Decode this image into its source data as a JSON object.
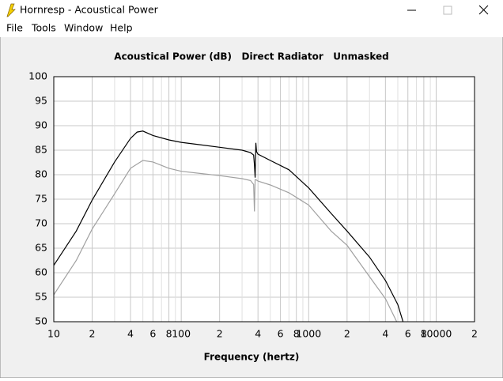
{
  "window": {
    "title": "Hornresp - Acoustical Power",
    "menu": [
      "File",
      "Tools",
      "Window",
      "Help"
    ]
  },
  "chart_data": {
    "type": "line",
    "title": "Acoustical Power (dB)   Direct Radiator   Unmasked",
    "x_label": "Frequency (hertz)",
    "x_scale": "log",
    "grid": true,
    "xlim": [
      10,
      20000
    ],
    "ylim": [
      50,
      100
    ],
    "xticks": [
      10,
      {
        "value": 20,
        "label": "2"
      },
      {
        "value": 40,
        "label": "4"
      },
      {
        "value": 60,
        "label": "6"
      },
      {
        "value": 80,
        "label": "8"
      },
      100,
      {
        "value": 200,
        "label": "2"
      },
      {
        "value": 400,
        "label": "4"
      },
      {
        "value": 600,
        "label": "6"
      },
      {
        "value": 800,
        "label": "8"
      },
      1000,
      {
        "value": 2000,
        "label": "2"
      },
      {
        "value": 4000,
        "label": "4"
      },
      {
        "value": 6000,
        "label": "6"
      },
      {
        "value": 8000,
        "label": "8"
      },
      10000,
      {
        "value": 20000,
        "label": "2"
      }
    ],
    "x_minor_ticks": [
      30,
      50,
      70,
      90,
      300,
      500,
      700,
      900,
      3000,
      5000,
      7000,
      9000
    ],
    "yticks": [
      50,
      55,
      60,
      65,
      70,
      75,
      80,
      85,
      90,
      95,
      100
    ],
    "series": [
      {
        "color": "#000000",
        "x": [
          10,
          15,
          20,
          30,
          40,
          45,
          50,
          60,
          80,
          100,
          200,
          300,
          350,
          370,
          375,
          380,
          385,
          390,
          400,
          500,
          700,
          1000,
          1500,
          2000,
          3000,
          4000,
          5000,
          5500
        ],
        "values": [
          61.5,
          68.5,
          74.8,
          82.6,
          87.4,
          88.7,
          88.9,
          88,
          87.1,
          86.6,
          85.6,
          85,
          84.5,
          84,
          82,
          79.4,
          86.5,
          84.7,
          84.2,
          82.9,
          81,
          77.3,
          72.1,
          68.5,
          63.2,
          58.4,
          53.5,
          50
        ]
      },
      {
        "color": "#a0a0a0",
        "x": [
          10,
          15,
          20,
          30,
          40,
          50,
          60,
          80,
          100,
          200,
          300,
          350,
          370,
          375,
          380,
          390,
          400,
          500,
          700,
          1000,
          1500,
          2000,
          3000,
          4000,
          4900
        ],
        "values": [
          55.5,
          62.5,
          68.9,
          76.1,
          81.3,
          82.9,
          82.6,
          81.3,
          80.7,
          79.8,
          79.2,
          78.8,
          78,
          72.5,
          79,
          78.9,
          78.7,
          77.9,
          76.3,
          73.8,
          68.5,
          65.6,
          59.2,
          54.7,
          50
        ]
      }
    ]
  }
}
